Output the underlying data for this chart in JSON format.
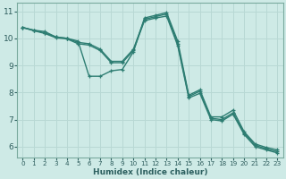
{
  "xlabel": "Humidex (Indice chaleur)",
  "bg_color": "#ceeae6",
  "grid_color": "#b8d8d4",
  "line_color": "#2d7d72",
  "xlim": [
    -0.5,
    23.5
  ],
  "ylim": [
    5.6,
    11.3
  ],
  "xticks": [
    0,
    1,
    2,
    3,
    4,
    5,
    6,
    7,
    8,
    9,
    10,
    11,
    12,
    13,
    14,
    15,
    16,
    17,
    18,
    19,
    20,
    21,
    22,
    23
  ],
  "yticks": [
    6,
    7,
    8,
    9,
    10,
    11
  ],
  "line1_x": [
    0,
    1,
    2,
    3,
    4,
    5,
    6,
    7,
    8,
    9,
    10,
    11,
    12,
    13,
    14,
    15,
    16,
    17,
    18,
    19,
    20,
    21,
    22,
    23
  ],
  "line1_y": [
    10.4,
    10.3,
    10.25,
    10.05,
    10.0,
    9.9,
    8.6,
    8.6,
    8.8,
    8.85,
    9.5,
    10.75,
    10.85,
    10.95,
    9.9,
    7.9,
    8.1,
    7.1,
    7.1,
    7.35,
    6.55,
    6.1,
    5.97,
    5.88
  ],
  "line2_x": [
    0,
    1,
    2,
    3,
    4,
    5,
    6,
    7,
    8,
    9,
    10,
    11,
    12,
    13,
    14,
    15,
    16,
    17,
    18,
    19,
    20,
    21,
    22,
    23
  ],
  "line2_y": [
    10.4,
    10.3,
    10.2,
    10.05,
    10.0,
    9.85,
    9.8,
    9.6,
    9.15,
    9.15,
    9.6,
    10.7,
    10.8,
    10.9,
    9.8,
    7.85,
    8.05,
    7.05,
    7.0,
    7.25,
    6.5,
    6.05,
    5.92,
    5.82
  ],
  "line3_x": [
    0,
    1,
    2,
    3,
    4,
    5,
    6,
    7,
    8,
    9,
    10,
    11,
    12,
    13,
    14,
    15,
    16,
    17,
    18,
    19,
    20,
    21,
    22,
    23
  ],
  "line3_y": [
    10.4,
    10.28,
    10.18,
    10.02,
    9.98,
    9.8,
    9.75,
    9.55,
    9.1,
    9.1,
    9.55,
    10.65,
    10.75,
    10.82,
    9.73,
    7.8,
    7.97,
    7.0,
    6.95,
    7.2,
    6.45,
    6.0,
    5.88,
    5.77
  ]
}
